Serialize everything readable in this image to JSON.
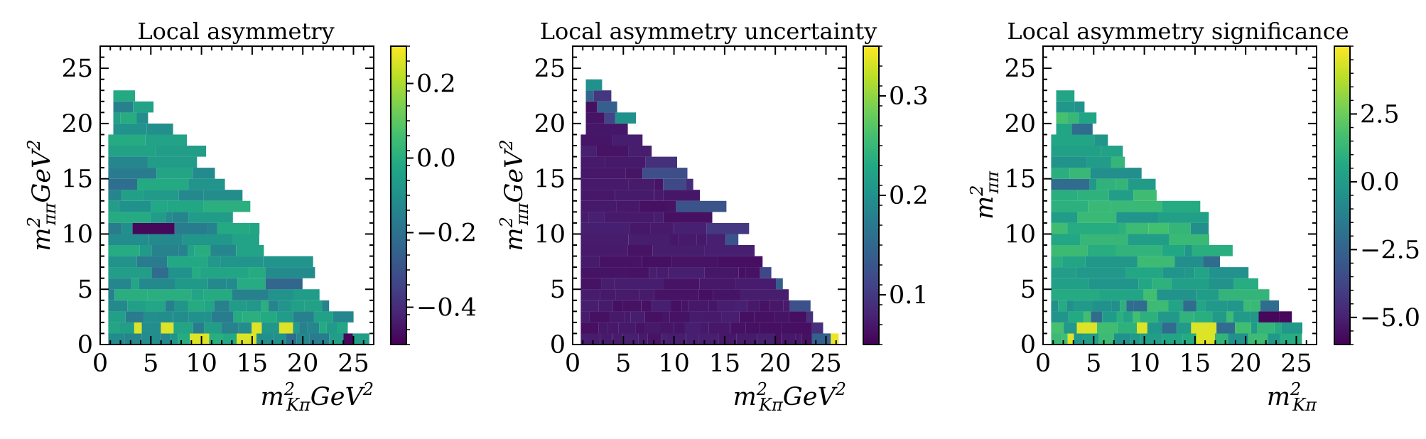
{
  "chart_data": [
    {
      "type": "heatmap",
      "title": "Local asymmetry",
      "xlabel": {
        "base": "m",
        "sup": "2",
        "sub": "Kπ",
        "unit": "GeV",
        "unit_sup": "2"
      },
      "ylabel": {
        "base": "m",
        "sup": "2",
        "sub": "ππ",
        "unit": "GeV",
        "unit_sup": "2"
      },
      "xlim": [
        0,
        27
      ],
      "ylim": [
        0,
        27
      ],
      "x_ticks": [
        "0",
        "5",
        "10",
        "15",
        "20",
        "25"
      ],
      "y_ticks": [
        "0",
        "5",
        "10",
        "15",
        "20",
        "25"
      ],
      "colorbar": {
        "colormap": "viridis",
        "range": [
          -0.5,
          0.3
        ],
        "ticks": [
          -0.4,
          -0.2,
          0.0,
          0.2
        ],
        "tick_labels": [
          "−0.4",
          "−0.2",
          "0.0",
          "0.2"
        ]
      },
      "grid": false,
      "bins": "dalitz-triangle",
      "value_pattern": "mostly between -0.1 and 0.1 with scattered high values near the lower edge"
    },
    {
      "type": "heatmap",
      "title": "Local asymmetry uncertainty",
      "xlabel": {
        "base": "m",
        "sup": "2",
        "sub": "Kπ",
        "unit": "GeV",
        "unit_sup": "2"
      },
      "ylabel": {
        "base": "m",
        "sup": "2",
        "sub": "ππ",
        "unit": "GeV",
        "unit_sup": "2"
      },
      "xlim": [
        0,
        27
      ],
      "ylim": [
        0,
        27
      ],
      "x_ticks": [
        "0",
        "5",
        "10",
        "15",
        "20",
        "25"
      ],
      "y_ticks": [
        "0",
        "5",
        "10",
        "15",
        "20",
        "25"
      ],
      "colorbar": {
        "colormap": "viridis",
        "range": [
          0.05,
          0.35
        ],
        "ticks": [
          0.1,
          0.2,
          0.3
        ],
        "tick_labels": [
          "0.1",
          "0.2",
          "0.3"
        ]
      },
      "grid": false,
      "bins": "dalitz-triangle",
      "value_pattern": "low (~0.05-0.08) in the interior, rising along the diagonal edge"
    },
    {
      "type": "heatmap",
      "title": "Local asymmetry significance",
      "xlabel": {
        "base": "m",
        "sup": "2",
        "sub": "Kπ",
        "unit": "",
        "unit_sup": ""
      },
      "ylabel": {
        "base": "m",
        "sup": "2",
        "sub": "ππ",
        "unit": "",
        "unit_sup": ""
      },
      "xlim": [
        0,
        27
      ],
      "ylim": [
        0,
        27
      ],
      "x_ticks": [
        "0",
        "5",
        "10",
        "15",
        "20",
        "25"
      ],
      "y_ticks": [
        "0",
        "5",
        "10",
        "15",
        "20",
        "25"
      ],
      "colorbar": {
        "colormap": "viridis",
        "range": [
          -6,
          5
        ],
        "ticks": [
          -5.0,
          -2.5,
          0.0,
          2.5
        ],
        "tick_labels": [
          "−5.0",
          "−2.5",
          "0.0",
          "2.5"
        ]
      },
      "grid": false,
      "bins": "dalitz-triangle",
      "value_pattern": "mostly between -1 and 2 with a few extreme bins"
    }
  ]
}
